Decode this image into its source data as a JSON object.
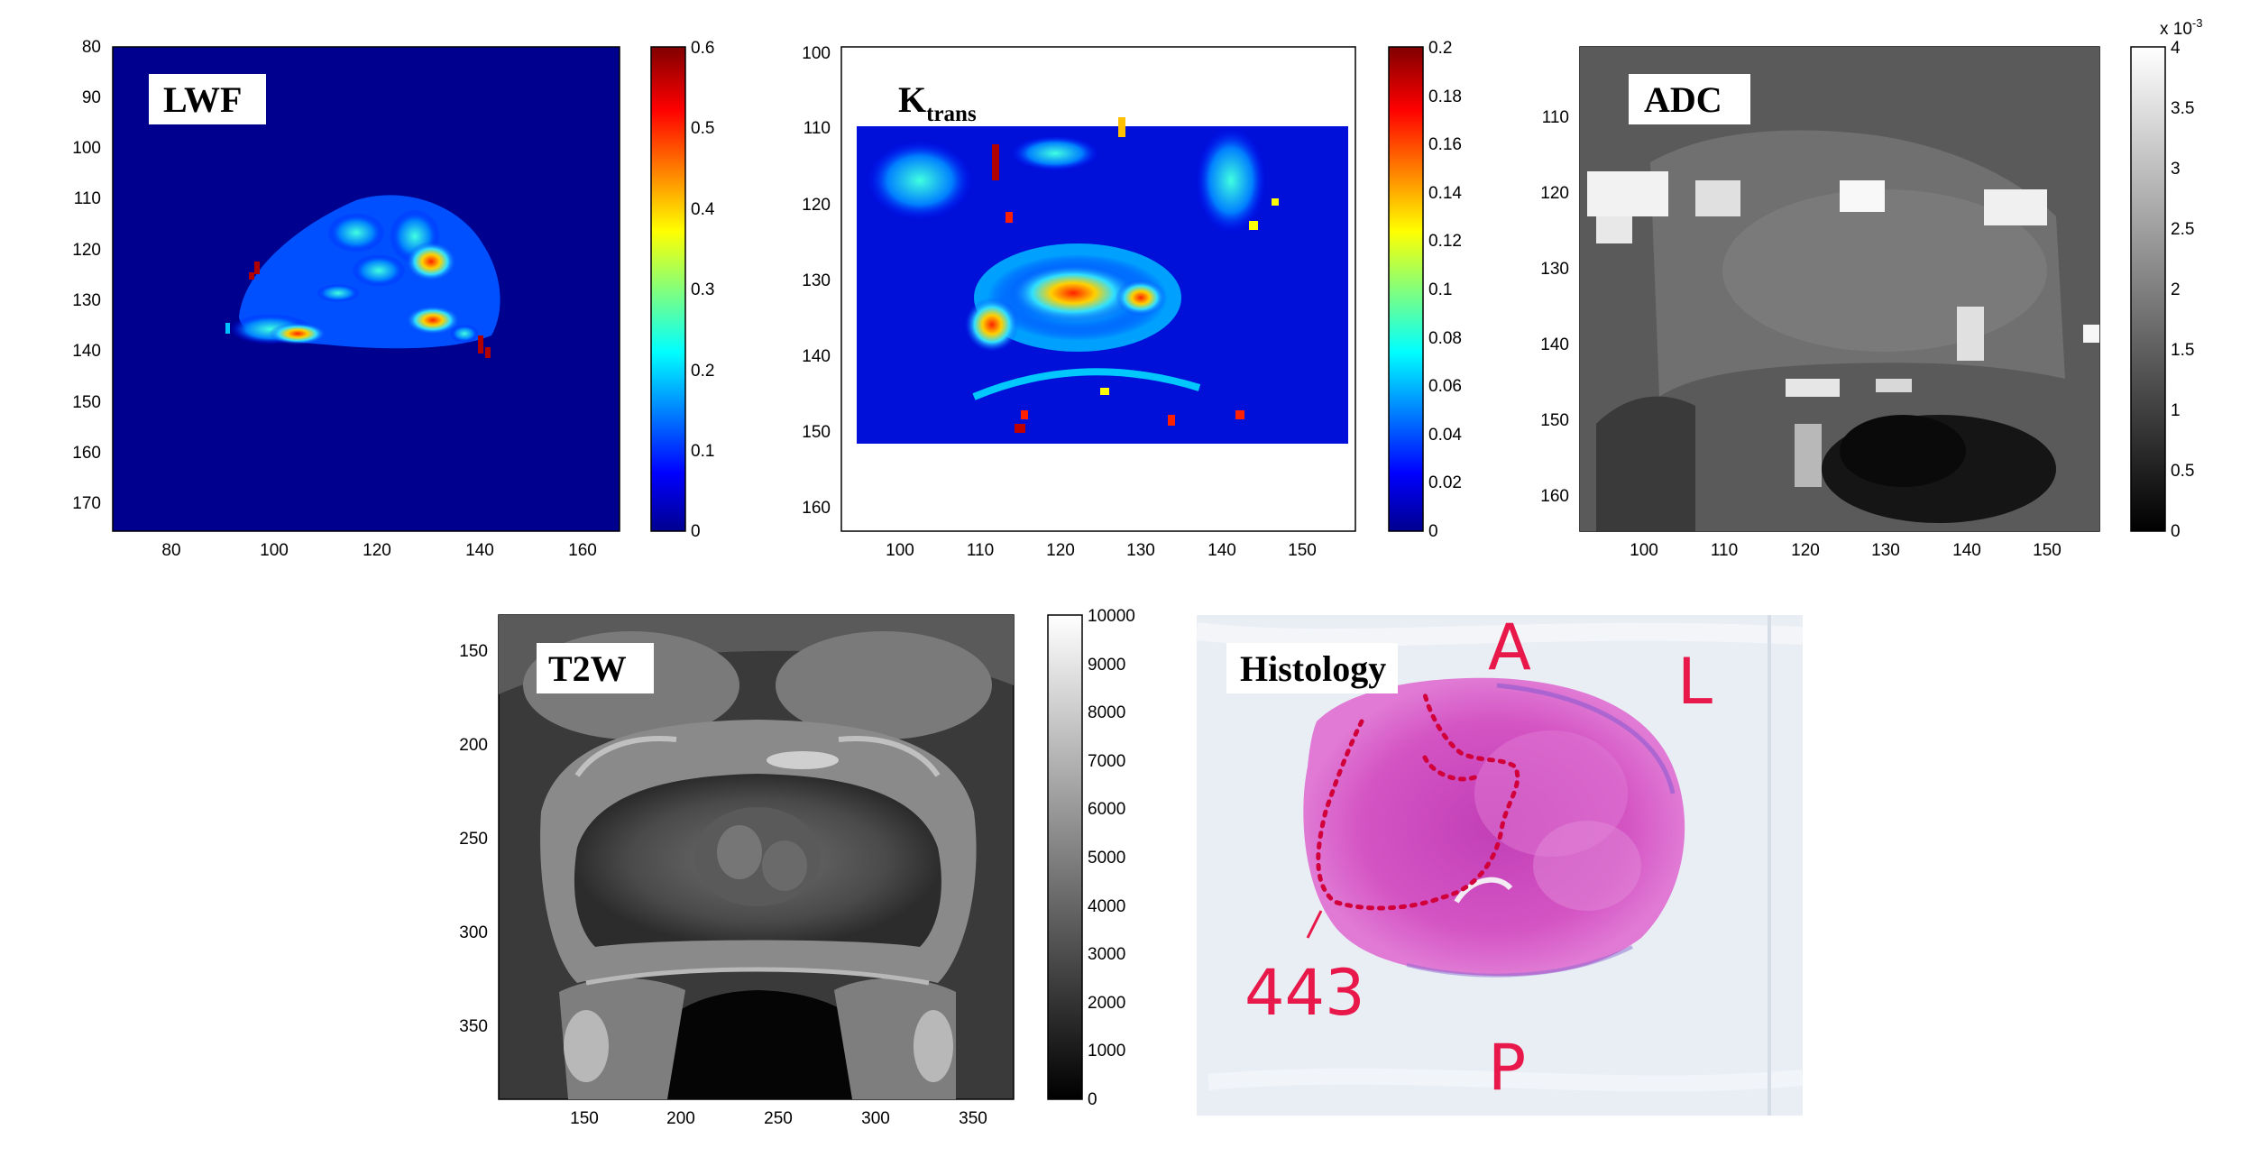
{
  "figure": {
    "panels": [
      {
        "id": "lwf",
        "title": "LWF",
        "xticks": [
          "80",
          "100",
          "120",
          "140",
          "160"
        ],
        "yticks": [
          "80",
          "90",
          "100",
          "110",
          "120",
          "130",
          "140",
          "150",
          "160",
          "170"
        ],
        "colorbar": {
          "colormap": "jet",
          "ticks": [
            "0.6",
            "0.5",
            "0.4",
            "0.3",
            "0.2",
            "0.1",
            "0"
          ]
        }
      },
      {
        "id": "ktrans",
        "title_main": "K",
        "title_sub": "trans",
        "xticks": [
          "100",
          "110",
          "120",
          "130",
          "140",
          "150"
        ],
        "yticks": [
          "100",
          "110",
          "120",
          "130",
          "140",
          "150",
          "160"
        ],
        "colorbar": {
          "colormap": "jet",
          "ticks": [
            "0.2",
            "0.18",
            "0.16",
            "0.14",
            "0.12",
            "0.1",
            "0.08",
            "0.06",
            "0.04",
            "0.02",
            "0"
          ]
        }
      },
      {
        "id": "adc",
        "title": "ADC",
        "xticks": [
          "100",
          "110",
          "120",
          "130",
          "140",
          "150"
        ],
        "yticks": [
          "110",
          "120",
          "130",
          "140",
          "150",
          "160"
        ],
        "colorbar": {
          "colormap": "gray",
          "ticks": [
            "4",
            "3.5",
            "3",
            "2.5",
            "2",
            "1.5",
            "1",
            "0.5",
            "0"
          ],
          "exponent_base": "x 10",
          "exponent_power": "-3"
        }
      },
      {
        "id": "t2w",
        "title": "T2W",
        "xticks": [
          "150",
          "200",
          "250",
          "300",
          "350"
        ],
        "yticks": [
          "150",
          "200",
          "250",
          "300",
          "350"
        ],
        "colorbar": {
          "colormap": "gray",
          "ticks": [
            "10000",
            "9000",
            "8000",
            "7000",
            "6000",
            "5000",
            "4000",
            "3000",
            "2000",
            "1000",
            "0"
          ]
        }
      },
      {
        "id": "histology",
        "title": "Histology",
        "slide_labels": {
          "anterior": "A",
          "left": "L",
          "posterior": "P",
          "specimen": "443"
        }
      }
    ],
    "colors": {
      "jet_background": "#00008f",
      "jet_ramp": [
        "#00008f",
        "#0000ff",
        "#00ffff",
        "#ffff00",
        "#ff0000",
        "#800000"
      ],
      "gray_ramp": [
        "#000000",
        "#ffffff"
      ],
      "histology_tissue": "#d04ec0",
      "ink_red": "#e8184a"
    }
  }
}
